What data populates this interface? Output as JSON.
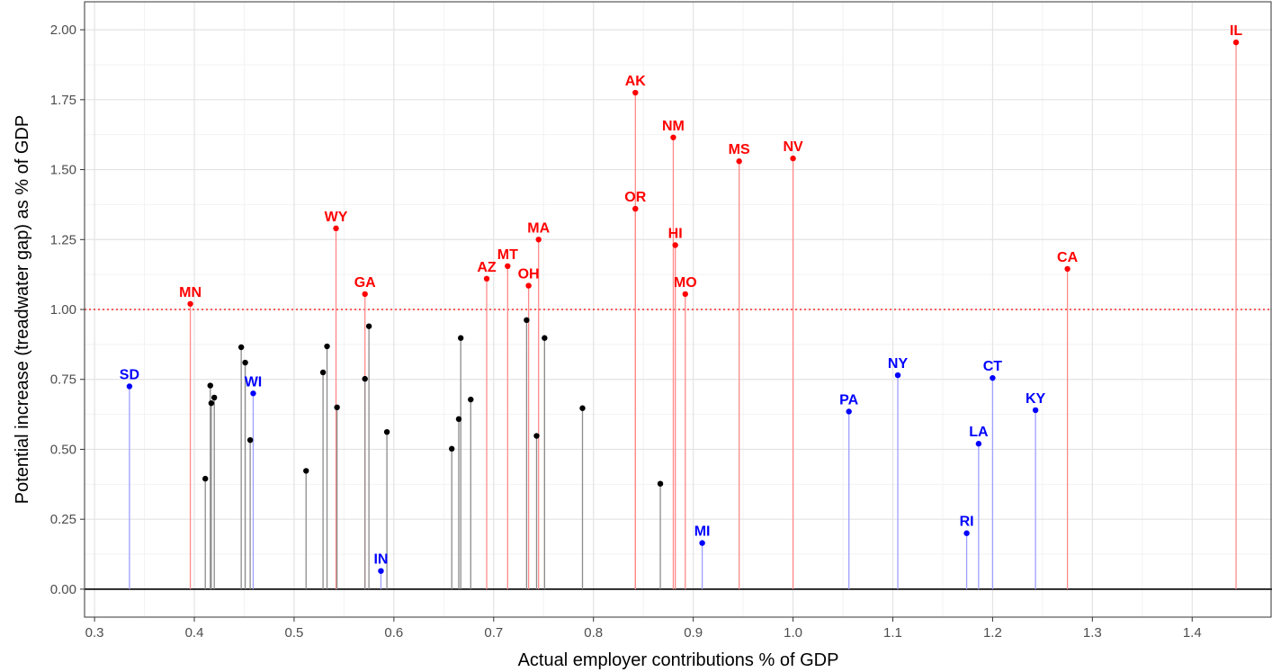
{
  "chart_data": {
    "type": "scatter",
    "subtype": "lollipop",
    "title": "",
    "xlabel": "Actual employer contributions % of GDP",
    "ylabel": "Potential increase (treadwater gap) as % of GDP",
    "xlim": [
      0.29,
      1.48
    ],
    "ylim": [
      -0.1,
      2.1
    ],
    "x_ticks": [
      0.3,
      0.4,
      0.5,
      0.6,
      0.7,
      0.8,
      0.9,
      1.0,
      1.1,
      1.2,
      1.3,
      1.4
    ],
    "x_tick_labels": [
      "0.3",
      "0.4",
      "0.5",
      "0.6",
      "0.7",
      "0.8",
      "0.9",
      "1.0",
      "1.1",
      "1.2",
      "1.3",
      "1.4"
    ],
    "y_ticks": [
      0,
      0.25,
      0.5,
      0.75,
      1.0,
      1.25,
      1.5,
      1.75,
      2.0
    ],
    "y_tick_labels": [
      "0.00",
      "0.25",
      "0.50",
      "0.75",
      "1.00",
      "1.25",
      "1.50",
      "1.75",
      "2.00"
    ],
    "grid": true,
    "reference_lines": [
      {
        "y": 0,
        "style": "solid",
        "color": "#000000"
      },
      {
        "y": 1.0,
        "style": "dotted",
        "color": "#ff0000"
      }
    ],
    "colors": {
      "red": "#ff0000",
      "blue": "#0000ff",
      "black": "#000000"
    },
    "series": [
      {
        "color": "red",
        "points": [
          {
            "label": "MN",
            "x": 0.396,
            "y": 1.02
          },
          {
            "label": "WY",
            "x": 0.542,
            "y": 1.29
          },
          {
            "label": "GA",
            "x": 0.571,
            "y": 1.055
          },
          {
            "label": "AZ",
            "x": 0.693,
            "y": 1.11
          },
          {
            "label": "MT",
            "x": 0.714,
            "y": 1.155
          },
          {
            "label": "OH",
            "x": 0.735,
            "y": 1.085
          },
          {
            "label": "MA",
            "x": 0.745,
            "y": 1.25
          },
          {
            "label": "AK",
            "x": 0.842,
            "y": 1.775
          },
          {
            "label": "OR",
            "x": 0.842,
            "y": 1.36
          },
          {
            "label": "NM",
            "x": 0.88,
            "y": 1.615
          },
          {
            "label": "HI",
            "x": 0.882,
            "y": 1.23
          },
          {
            "label": "MO",
            "x": 0.892,
            "y": 1.055
          },
          {
            "label": "MS",
            "x": 0.946,
            "y": 1.53
          },
          {
            "label": "NV",
            "x": 1.0,
            "y": 1.54
          },
          {
            "label": "CA",
            "x": 1.275,
            "y": 1.145
          },
          {
            "label": "IL",
            "x": 1.444,
            "y": 1.955
          }
        ]
      },
      {
        "color": "blue",
        "points": [
          {
            "label": "SD",
            "x": 0.335,
            "y": 0.725
          },
          {
            "label": "WI",
            "x": 0.459,
            "y": 0.7
          },
          {
            "label": "IN",
            "x": 0.587,
            "y": 0.065
          },
          {
            "label": "MI",
            "x": 0.909,
            "y": 0.165
          },
          {
            "label": "PA",
            "x": 1.056,
            "y": 0.635
          },
          {
            "label": "NY",
            "x": 1.105,
            "y": 0.765
          },
          {
            "label": "RI",
            "x": 1.174,
            "y": 0.2
          },
          {
            "label": "LA",
            "x": 1.186,
            "y": 0.52
          },
          {
            "label": "CT",
            "x": 1.2,
            "y": 0.755
          },
          {
            "label": "KY",
            "x": 1.243,
            "y": 0.64
          }
        ]
      },
      {
        "color": "black",
        "points": [
          {
            "x": 0.411,
            "y": 0.395
          },
          {
            "x": 0.416,
            "y": 0.728
          },
          {
            "x": 0.417,
            "y": 0.665
          },
          {
            "x": 0.42,
            "y": 0.685
          },
          {
            "x": 0.447,
            "y": 0.865
          },
          {
            "x": 0.451,
            "y": 0.81
          },
          {
            "x": 0.456,
            "y": 0.533
          },
          {
            "x": 0.512,
            "y": 0.423
          },
          {
            "x": 0.529,
            "y": 0.775
          },
          {
            "x": 0.533,
            "y": 0.868
          },
          {
            "x": 0.543,
            "y": 0.65
          },
          {
            "x": 0.571,
            "y": 0.752
          },
          {
            "x": 0.575,
            "y": 0.94
          },
          {
            "x": 0.593,
            "y": 0.562
          },
          {
            "x": 0.658,
            "y": 0.502
          },
          {
            "x": 0.665,
            "y": 0.608
          },
          {
            "x": 0.667,
            "y": 0.898
          },
          {
            "x": 0.677,
            "y": 0.678
          },
          {
            "x": 0.733,
            "y": 0.962
          },
          {
            "x": 0.743,
            "y": 0.548
          },
          {
            "x": 0.751,
            "y": 0.898
          },
          {
            "x": 0.789,
            "y": 0.647
          },
          {
            "x": 0.867,
            "y": 0.377
          }
        ]
      }
    ]
  }
}
